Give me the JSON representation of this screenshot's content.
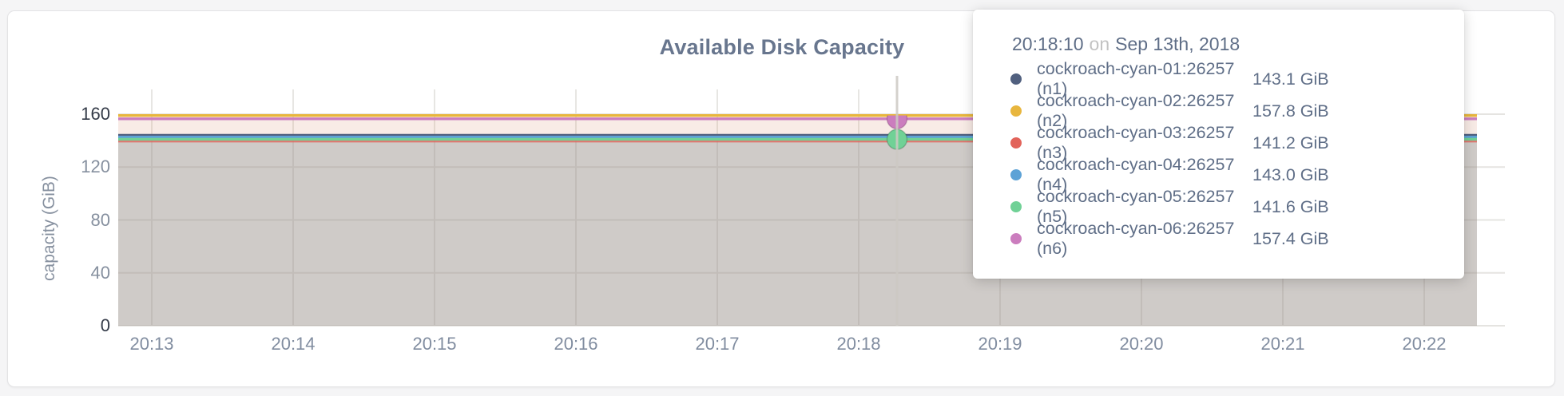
{
  "page": {
    "background": "#f5f5f6"
  },
  "card": {
    "title": "Available Disk Capacity",
    "title_color": "#68768e"
  },
  "chart_data": {
    "type": "area",
    "title": "Available Disk Capacity",
    "xlabel": "",
    "ylabel": "capacity (GiB)",
    "unit": "GiB",
    "ylim": [
      0,
      178
    ],
    "yticks": [
      0,
      40,
      80,
      120,
      160
    ],
    "xticks": [
      "20:13",
      "20:14",
      "20:15",
      "20:16",
      "20:17",
      "20:18",
      "20:19",
      "20:20",
      "20:21",
      "20:22"
    ],
    "grid": true,
    "fill_opacity": 0.1,
    "series": [
      {
        "name": "cockroach-cyan-01:26257 (n1)",
        "color": "#51607f",
        "value": 143.1,
        "display": "143.1 GiB"
      },
      {
        "name": "cockroach-cyan-02:26257 (n2)",
        "color": "#e8b63e",
        "value": 157.8,
        "display": "157.8 GiB"
      },
      {
        "name": "cockroach-cyan-03:26257 (n3)",
        "color": "#e2635a",
        "value": 141.2,
        "display": "141.2 GiB"
      },
      {
        "name": "cockroach-cyan-04:26257 (n4)",
        "color": "#5da2d6",
        "value": 143.0,
        "display": "143.0 GiB"
      },
      {
        "name": "cockroach-cyan-05:26257 (n5)",
        "color": "#70d196",
        "value": 141.6,
        "display": "141.6 GiB"
      },
      {
        "name": "cockroach-cyan-06:26257 (n6)",
        "color": "#cb7dbe",
        "value": 157.4,
        "display": "157.4 GiB"
      }
    ],
    "hover": {
      "time": "20:18:10",
      "preposition": "on",
      "date": "Sep 13th, 2018",
      "nearest_tick": "20:18",
      "marker_series": [
        "cockroach-cyan-05:26257 (n5)",
        "cockroach-cyan-06:26257 (n6)"
      ]
    }
  }
}
